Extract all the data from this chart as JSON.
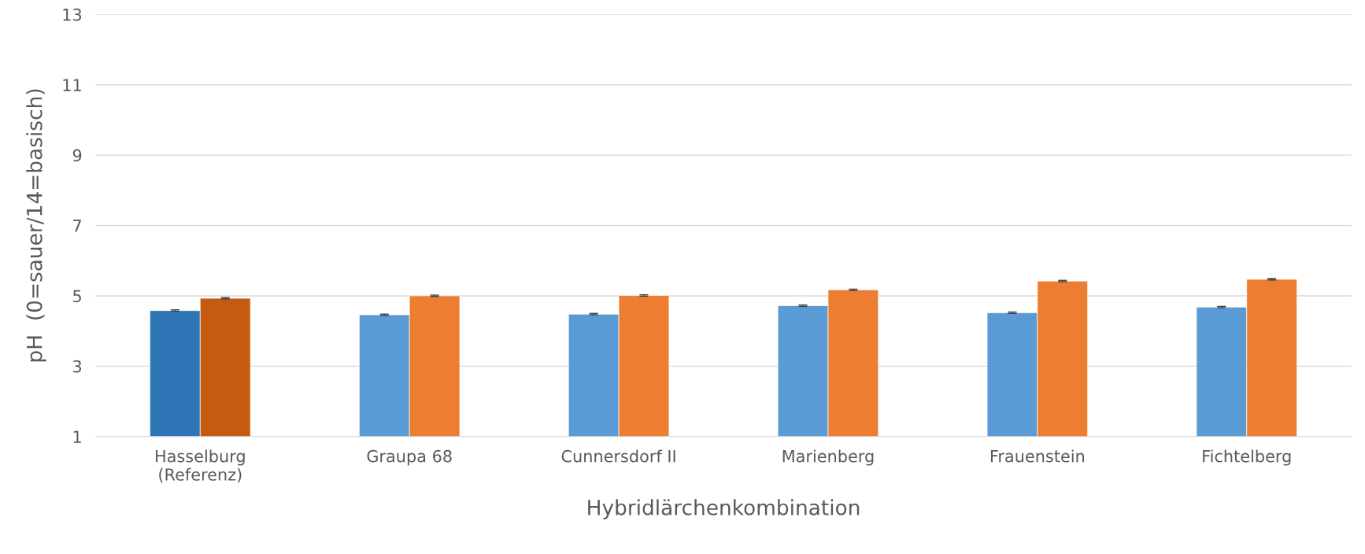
{
  "chart_data": {
    "type": "bar",
    "xlabel": "Hybridlärchenkombination",
    "ylabel": "pH  (0=sauer/14=basisch)",
    "categories": [
      "Hasselburg\n(Referenz)",
      "Graupa 68",
      "Cunnersdorf II",
      "Marienberg",
      "Frauenstein",
      "Fichtelberg"
    ],
    "series": [
      {
        "colors": [
          "#2e75b6",
          "#5b9bd5",
          "#5b9bd5",
          "#5b9bd5",
          "#5b9bd5",
          "#5b9bd5"
        ],
        "values": [
          4.58,
          4.46,
          4.48,
          4.72,
          4.52,
          4.68
        ],
        "errors": [
          0.02,
          0.02,
          0.02,
          0.02,
          0.02,
          0.02
        ]
      },
      {
        "colors": [
          "#c55a11",
          "#ed7d31",
          "#ed7d31",
          "#ed7d31",
          "#ed7d31",
          "#ed7d31"
        ],
        "values": [
          4.93,
          5.0,
          5.01,
          5.17,
          5.42,
          5.47
        ],
        "errors": [
          0.02,
          0.02,
          0.02,
          0.02,
          0.02,
          0.02
        ]
      }
    ],
    "ylim": [
      1,
      13
    ],
    "yticks": [
      1,
      3,
      5,
      7,
      9,
      11,
      13
    ],
    "grid": "y",
    "legend": false
  }
}
